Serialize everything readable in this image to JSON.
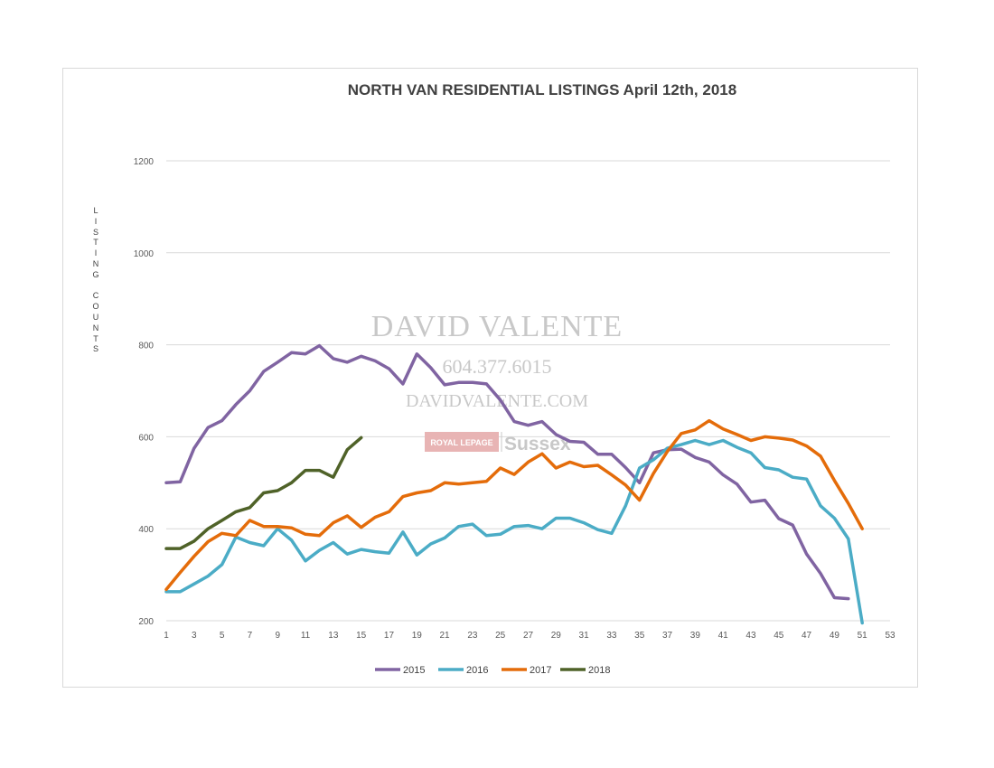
{
  "chart_data": {
    "type": "line",
    "title": "NORTH VAN RESIDENTIAL LISTINGS April 12th, 2018",
    "ylabel": "LISTING COUNTS",
    "xlabel": "",
    "ylim": [
      200,
      1200
    ],
    "xlim": [
      1,
      53
    ],
    "yticks": [
      200,
      400,
      600,
      800,
      1000,
      1200
    ],
    "xticks": [
      1,
      3,
      5,
      7,
      9,
      11,
      13,
      15,
      17,
      19,
      21,
      23,
      25,
      27,
      29,
      31,
      33,
      35,
      37,
      39,
      41,
      43,
      45,
      47,
      49,
      51,
      53
    ],
    "grid": "horizontal",
    "legend": "bottom",
    "series": [
      {
        "name": "2015",
        "color": "#8064a2",
        "values": [
          500,
          502,
          575,
          620,
          635,
          670,
          700,
          742,
          762,
          783,
          780,
          798,
          770,
          762,
          775,
          765,
          748,
          715,
          780,
          750,
          713,
          718,
          718,
          715,
          680,
          633,
          625,
          633,
          605,
          590,
          588,
          562,
          562,
          533,
          500,
          565,
          572,
          573,
          555,
          545,
          517,
          497,
          458,
          462,
          422,
          408,
          345,
          303,
          250,
          248
        ]
      },
      {
        "name": "2016",
        "color": "#4bacc6",
        "values": [
          263,
          263,
          280,
          297,
          322,
          382,
          370,
          363,
          400,
          375,
          330,
          353,
          370,
          345,
          355,
          350,
          347,
          393,
          343,
          367,
          380,
          405,
          410,
          385,
          388,
          405,
          407,
          400,
          423,
          423,
          413,
          398,
          390,
          450,
          532,
          550,
          575,
          583,
          592,
          583,
          592,
          577,
          565,
          533,
          528,
          512,
          508,
          450,
          423,
          378,
          195
        ]
      },
      {
        "name": "2017",
        "color": "#e46c0a",
        "values": [
          268,
          305,
          340,
          372,
          390,
          385,
          418,
          405,
          405,
          402,
          388,
          385,
          413,
          428,
          403,
          425,
          437,
          470,
          478,
          483,
          500,
          497,
          500,
          503,
          532,
          518,
          545,
          563,
          532,
          545,
          535,
          538,
          517,
          495,
          462,
          520,
          568,
          607,
          615,
          635,
          617,
          605,
          592,
          600,
          597,
          593,
          580,
          558,
          505,
          455,
          400
        ]
      },
      {
        "name": "2018",
        "color": "#4f6228",
        "values": [
          357,
          357,
          373,
          400,
          418,
          437,
          446,
          478,
          483,
          500,
          527,
          527,
          512,
          572,
          598
        ]
      }
    ]
  },
  "watermark": {
    "name": "DAVID VALENTE",
    "phone": "604.377.6015",
    "website": "DAVIDVALENTE.COM",
    "brand": "ROYAL LEPAGE",
    "brand_sub": "Sussex"
  }
}
